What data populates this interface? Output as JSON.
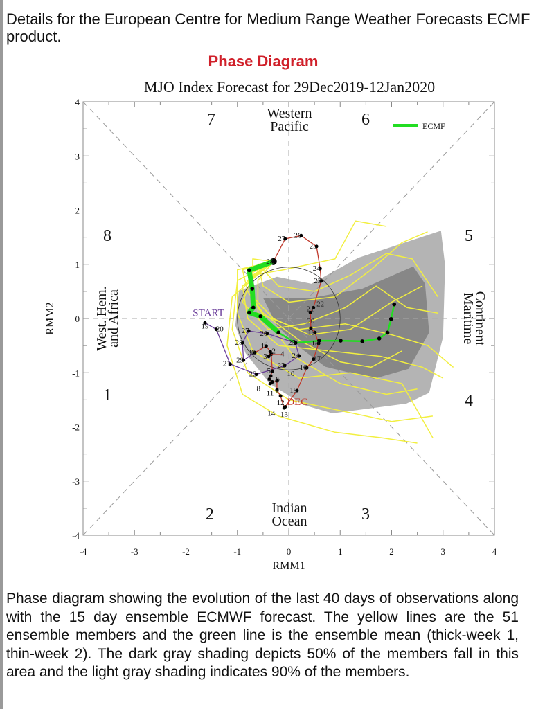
{
  "intro": "Details for the European Centre for Medium Range Weather Forecasts ECMF product.",
  "section_title": "Phase Diagram",
  "caption": "Phase diagram showing the evolution of the last 40 days of observations along with the 15 day ensemble ECMWF forecast. The yellow lines are the 51 ensemble members and the green line is the ensemble mean (thick-week 1, thin-week 2). The dark gray shading depicts 50% of the members fall in this area and the light gray shading indicates 90% of the members.",
  "chart_data": {
    "type": "line",
    "title": "MJO Index Forecast for 29Dec2019-12Jan2020",
    "xlabel": "RMM1",
    "ylabel": "RMM2",
    "xlim": [
      -4,
      4
    ],
    "ylim": [
      -4,
      4
    ],
    "xticks": [
      "-4",
      "-3",
      "-2",
      "-1",
      "0",
      "1",
      "2",
      "3",
      "4"
    ],
    "yticks": [
      "-4",
      "-3",
      "-2",
      "-1",
      "0",
      "1",
      "2",
      "3",
      "4"
    ],
    "legend": {
      "label": "ECMF",
      "position": "top-right"
    },
    "phase_labels": [
      "1",
      "2",
      "3",
      "4",
      "5",
      "6",
      "7",
      "8"
    ],
    "region_labels": {
      "top": [
        "Western",
        "Pacific"
      ],
      "bottom": [
        "Indian",
        "Ocean"
      ],
      "left": [
        "West. Hem.",
        "and Africa"
      ],
      "right": [
        "Maritime",
        "Continent"
      ]
    },
    "start_label": "START",
    "month_label": "DEC",
    "unit_circle_radius": 1,
    "colors": {
      "nov": "#6a3d9a",
      "dec": "#c0392b",
      "mean": "#22dd22",
      "members": "#f2ef40",
      "p90": "#b4b4b4",
      "p50": "#878787"
    },
    "observations": [
      {
        "label": "19",
        "month": "nov",
        "x": -1.63,
        "y": -0.08
      },
      {
        "label": "20",
        "month": "nov",
        "x": -1.41,
        "y": -0.2
      },
      {
        "label": "21",
        "month": "nov",
        "x": -1.14,
        "y": -0.84
      },
      {
        "label": "22",
        "month": "nov",
        "x": -0.63,
        "y": -1.03
      },
      {
        "label": "23",
        "month": "nov",
        "x": -0.08,
        "y": -0.87
      },
      {
        "label": "24",
        "month": "nov",
        "x": 0.2,
        "y": -0.69
      },
      {
        "label": "25",
        "month": "nov",
        "x": 0.13,
        "y": -0.45
      },
      {
        "label": "26",
        "month": "nov",
        "x": -0.42,
        "y": -0.28
      },
      {
        "label": "27",
        "month": "nov",
        "x": -0.78,
        "y": -0.23
      },
      {
        "label": "28",
        "month": "nov",
        "x": -0.9,
        "y": -0.45
      },
      {
        "label": "29",
        "month": "nov",
        "x": -0.88,
        "y": -0.77
      },
      {
        "label": "30",
        "month": "nov",
        "x": -0.66,
        "y": -0.63
      },
      {
        "label": "1",
        "month": "dec",
        "x": -0.44,
        "y": -0.51
      },
      {
        "label": "2",
        "month": "dec",
        "x": -0.36,
        "y": -0.61
      },
      {
        "label": "3",
        "month": "dec",
        "x": -0.39,
        "y": -0.7
      },
      {
        "label": "4",
        "month": "dec",
        "x": -0.34,
        "y": -0.66
      },
      {
        "label": "5",
        "month": "dec",
        "x": -0.32,
        "y": -0.97
      },
      {
        "label": "6",
        "month": "dec",
        "x": -0.35,
        "y": -1.06
      },
      {
        "label": "7",
        "month": "dec",
        "x": -0.38,
        "y": -1.12
      },
      {
        "label": "8",
        "month": "dec",
        "x": -0.32,
        "y": -1.17
      },
      {
        "label": "9",
        "month": "dec",
        "x": -0.36,
        "y": -1.2
      },
      {
        "label": "10",
        "month": "dec",
        "x": -0.23,
        "y": -1.15
      },
      {
        "label": "11",
        "month": "dec",
        "x": -0.23,
        "y": -1.32
      },
      {
        "label": "12",
        "month": "dec",
        "x": -0.16,
        "y": -1.43
      },
      {
        "label": "13",
        "month": "dec",
        "x": -0.09,
        "y": -1.65
      },
      {
        "label": "14",
        "month": "dec",
        "x": -0.07,
        "y": -1.63
      },
      {
        "label": "15",
        "month": "dec",
        "x": 0.16,
        "y": -1.33
      },
      {
        "label": "16",
        "month": "dec",
        "x": 0.35,
        "y": -0.91
      },
      {
        "label": "17",
        "month": "dec",
        "x": 0.48,
        "y": -0.75
      },
      {
        "label": "18",
        "month": "dec",
        "x": 0.58,
        "y": -0.46
      },
      {
        "label": "19",
        "month": "dec",
        "x": 0.51,
        "y": -0.26
      },
      {
        "label": "20",
        "month": "dec",
        "x": 0.43,
        "y": -0.18
      },
      {
        "label": "21",
        "month": "dec",
        "x": 0.42,
        "y": 0.11
      },
      {
        "label": "22",
        "month": "dec",
        "x": 0.48,
        "y": 0.2
      },
      {
        "label": "23",
        "month": "dec",
        "x": 0.63,
        "y": 0.69
      },
      {
        "label": "24",
        "month": "dec",
        "x": 0.61,
        "y": 0.92
      },
      {
        "label": "25",
        "month": "dec",
        "x": 0.54,
        "y": 1.33
      },
      {
        "label": "26",
        "month": "dec",
        "x": 0.24,
        "y": 1.53
      },
      {
        "label": "27",
        "month": "dec",
        "x": -0.07,
        "y": 1.47
      },
      {
        "label": "28",
        "month": "dec",
        "x": -0.3,
        "y": 1.05
      }
    ],
    "ensemble_mean": {
      "week1": [
        [
          -0.3,
          1.05
        ],
        [
          -0.77,
          0.89
        ],
        [
          -0.71,
          0.55
        ],
        [
          -0.69,
          0.2
        ],
        [
          -0.77,
          0.11
        ],
        [
          -0.55,
          0.04
        ],
        [
          -0.2,
          -0.26
        ]
      ],
      "week2": [
        [
          -0.2,
          -0.26
        ],
        [
          0.13,
          -0.45
        ],
        [
          0.59,
          -0.41
        ],
        [
          1.01,
          -0.41
        ],
        [
          1.43,
          -0.42
        ],
        [
          1.76,
          -0.37
        ],
        [
          1.92,
          -0.26
        ],
        [
          1.99,
          -0.01
        ],
        [
          2.05,
          0.26
        ]
      ]
    },
    "members": [
      [
        [
          -0.3,
          1.05
        ],
        [
          -0.8,
          0.9
        ],
        [
          -0.7,
          0.4
        ],
        [
          -0.3,
          0.0
        ],
        [
          0.4,
          -0.3
        ],
        [
          1.2,
          -0.2
        ],
        [
          2.0,
          0.3
        ],
        [
          2.6,
          0.6
        ]
      ],
      [
        [
          -0.3,
          1.05
        ],
        [
          -0.9,
          0.6
        ],
        [
          -0.8,
          0.0
        ],
        [
          -0.2,
          -0.5
        ],
        [
          0.8,
          -0.6
        ],
        [
          1.8,
          -0.7
        ],
        [
          2.6,
          -0.9
        ],
        [
          3.0,
          -1.1
        ]
      ],
      [
        [
          -0.3,
          1.05
        ],
        [
          -0.6,
          1.0
        ],
        [
          -0.5,
          0.6
        ],
        [
          0.0,
          0.3
        ],
        [
          0.9,
          0.4
        ],
        [
          1.6,
          0.9
        ],
        [
          2.2,
          1.4
        ],
        [
          2.7,
          1.6
        ]
      ],
      [
        [
          -0.3,
          1.05
        ],
        [
          -1.0,
          0.7
        ],
        [
          -1.1,
          -0.2
        ],
        [
          -0.8,
          -1.0
        ],
        [
          0.0,
          -1.5
        ],
        [
          1.0,
          -1.7
        ],
        [
          2.0,
          -1.9
        ],
        [
          2.8,
          -1.8
        ]
      ],
      [
        [
          -0.3,
          1.05
        ],
        [
          -0.7,
          0.8
        ],
        [
          -0.9,
          0.3
        ],
        [
          -0.4,
          -0.2
        ],
        [
          0.3,
          -0.1
        ],
        [
          1.1,
          0.2
        ],
        [
          1.7,
          0.6
        ],
        [
          2.3,
          0.2
        ],
        [
          2.9,
          0.1
        ]
      ],
      [
        [
          -0.3,
          1.05
        ],
        [
          -0.8,
          0.7
        ],
        [
          -0.6,
          0.2
        ],
        [
          0.1,
          -0.7
        ],
        [
          1.0,
          -1.2
        ],
        [
          1.9,
          -1.4
        ],
        [
          2.5,
          -1.3
        ]
      ],
      [
        [
          -0.3,
          1.05
        ],
        [
          -0.5,
          0.9
        ],
        [
          -0.2,
          0.6
        ],
        [
          0.5,
          0.5
        ],
        [
          1.2,
          0.8
        ],
        [
          1.9,
          1.2
        ],
        [
          2.4,
          1.1
        ],
        [
          2.9,
          0.4
        ]
      ],
      [
        [
          -0.3,
          1.05
        ],
        [
          -1.1,
          0.4
        ],
        [
          -1.2,
          -0.5
        ],
        [
          -0.9,
          -1.4
        ],
        [
          -0.2,
          -1.8
        ],
        [
          0.9,
          -2.1
        ],
        [
          1.8,
          -2.2
        ],
        [
          2.5,
          -2.3
        ]
      ],
      [
        [
          -0.3,
          1.05
        ],
        [
          -0.9,
          0.9
        ],
        [
          -0.8,
          0.5
        ],
        [
          -0.5,
          0.1
        ],
        [
          0.2,
          -0.4
        ],
        [
          1.0,
          -0.8
        ],
        [
          1.6,
          -0.9
        ],
        [
          2.2,
          -0.6
        ]
      ],
      [
        [
          -0.3,
          1.05
        ],
        [
          -0.6,
          0.7
        ],
        [
          -0.6,
          0.1
        ],
        [
          0.2,
          -0.2
        ],
        [
          1.1,
          -0.1
        ],
        [
          2.0,
          -0.3
        ],
        [
          2.7,
          -0.5
        ],
        [
          3.2,
          -0.9
        ]
      ],
      [
        [
          -0.3,
          1.05
        ],
        [
          -0.7,
          1.1
        ],
        [
          -0.7,
          0.8
        ],
        [
          -0.1,
          0.9
        ],
        [
          0.9,
          1.1
        ],
        [
          1.3,
          1.8
        ],
        [
          1.9,
          1.7
        ]
      ],
      [
        [
          -0.3,
          1.05
        ],
        [
          -1.0,
          0.9
        ],
        [
          -1.0,
          0.1
        ],
        [
          -0.7,
          -0.6
        ],
        [
          0.2,
          -1.1
        ],
        [
          1.2,
          -1.0
        ],
        [
          2.2,
          -1.2
        ],
        [
          2.8,
          -2.2
        ]
      ]
    ],
    "shading_90": [
      [
        -0.97,
        0.51
      ],
      [
        -0.23,
        0.77
      ],
      [
        0.44,
        0.64
      ],
      [
        1.35,
        1.12
      ],
      [
        2.96,
        1.62
      ],
      [
        3.04,
        0.98
      ],
      [
        3.0,
        -0.34
      ],
      [
        2.73,
        -1.37
      ],
      [
        2.29,
        -1.57
      ],
      [
        0.85,
        -1.75
      ],
      [
        0.31,
        -1.6
      ],
      [
        -0.36,
        -1.21
      ],
      [
        -0.84,
        -0.64
      ],
      [
        -1.04,
        -0.13
      ]
    ],
    "shading_50": [
      [
        -0.5,
        0.38
      ],
      [
        0.44,
        0.38
      ],
      [
        1.43,
        0.55
      ],
      [
        2.42,
        0.96
      ],
      [
        2.65,
        0.64
      ],
      [
        2.73,
        -0.26
      ],
      [
        2.33,
        -0.93
      ],
      [
        1.66,
        -1.11
      ],
      [
        0.71,
        -0.89
      ],
      [
        0.18,
        -0.51
      ],
      [
        -0.23,
        -0.13
      ]
    ]
  }
}
